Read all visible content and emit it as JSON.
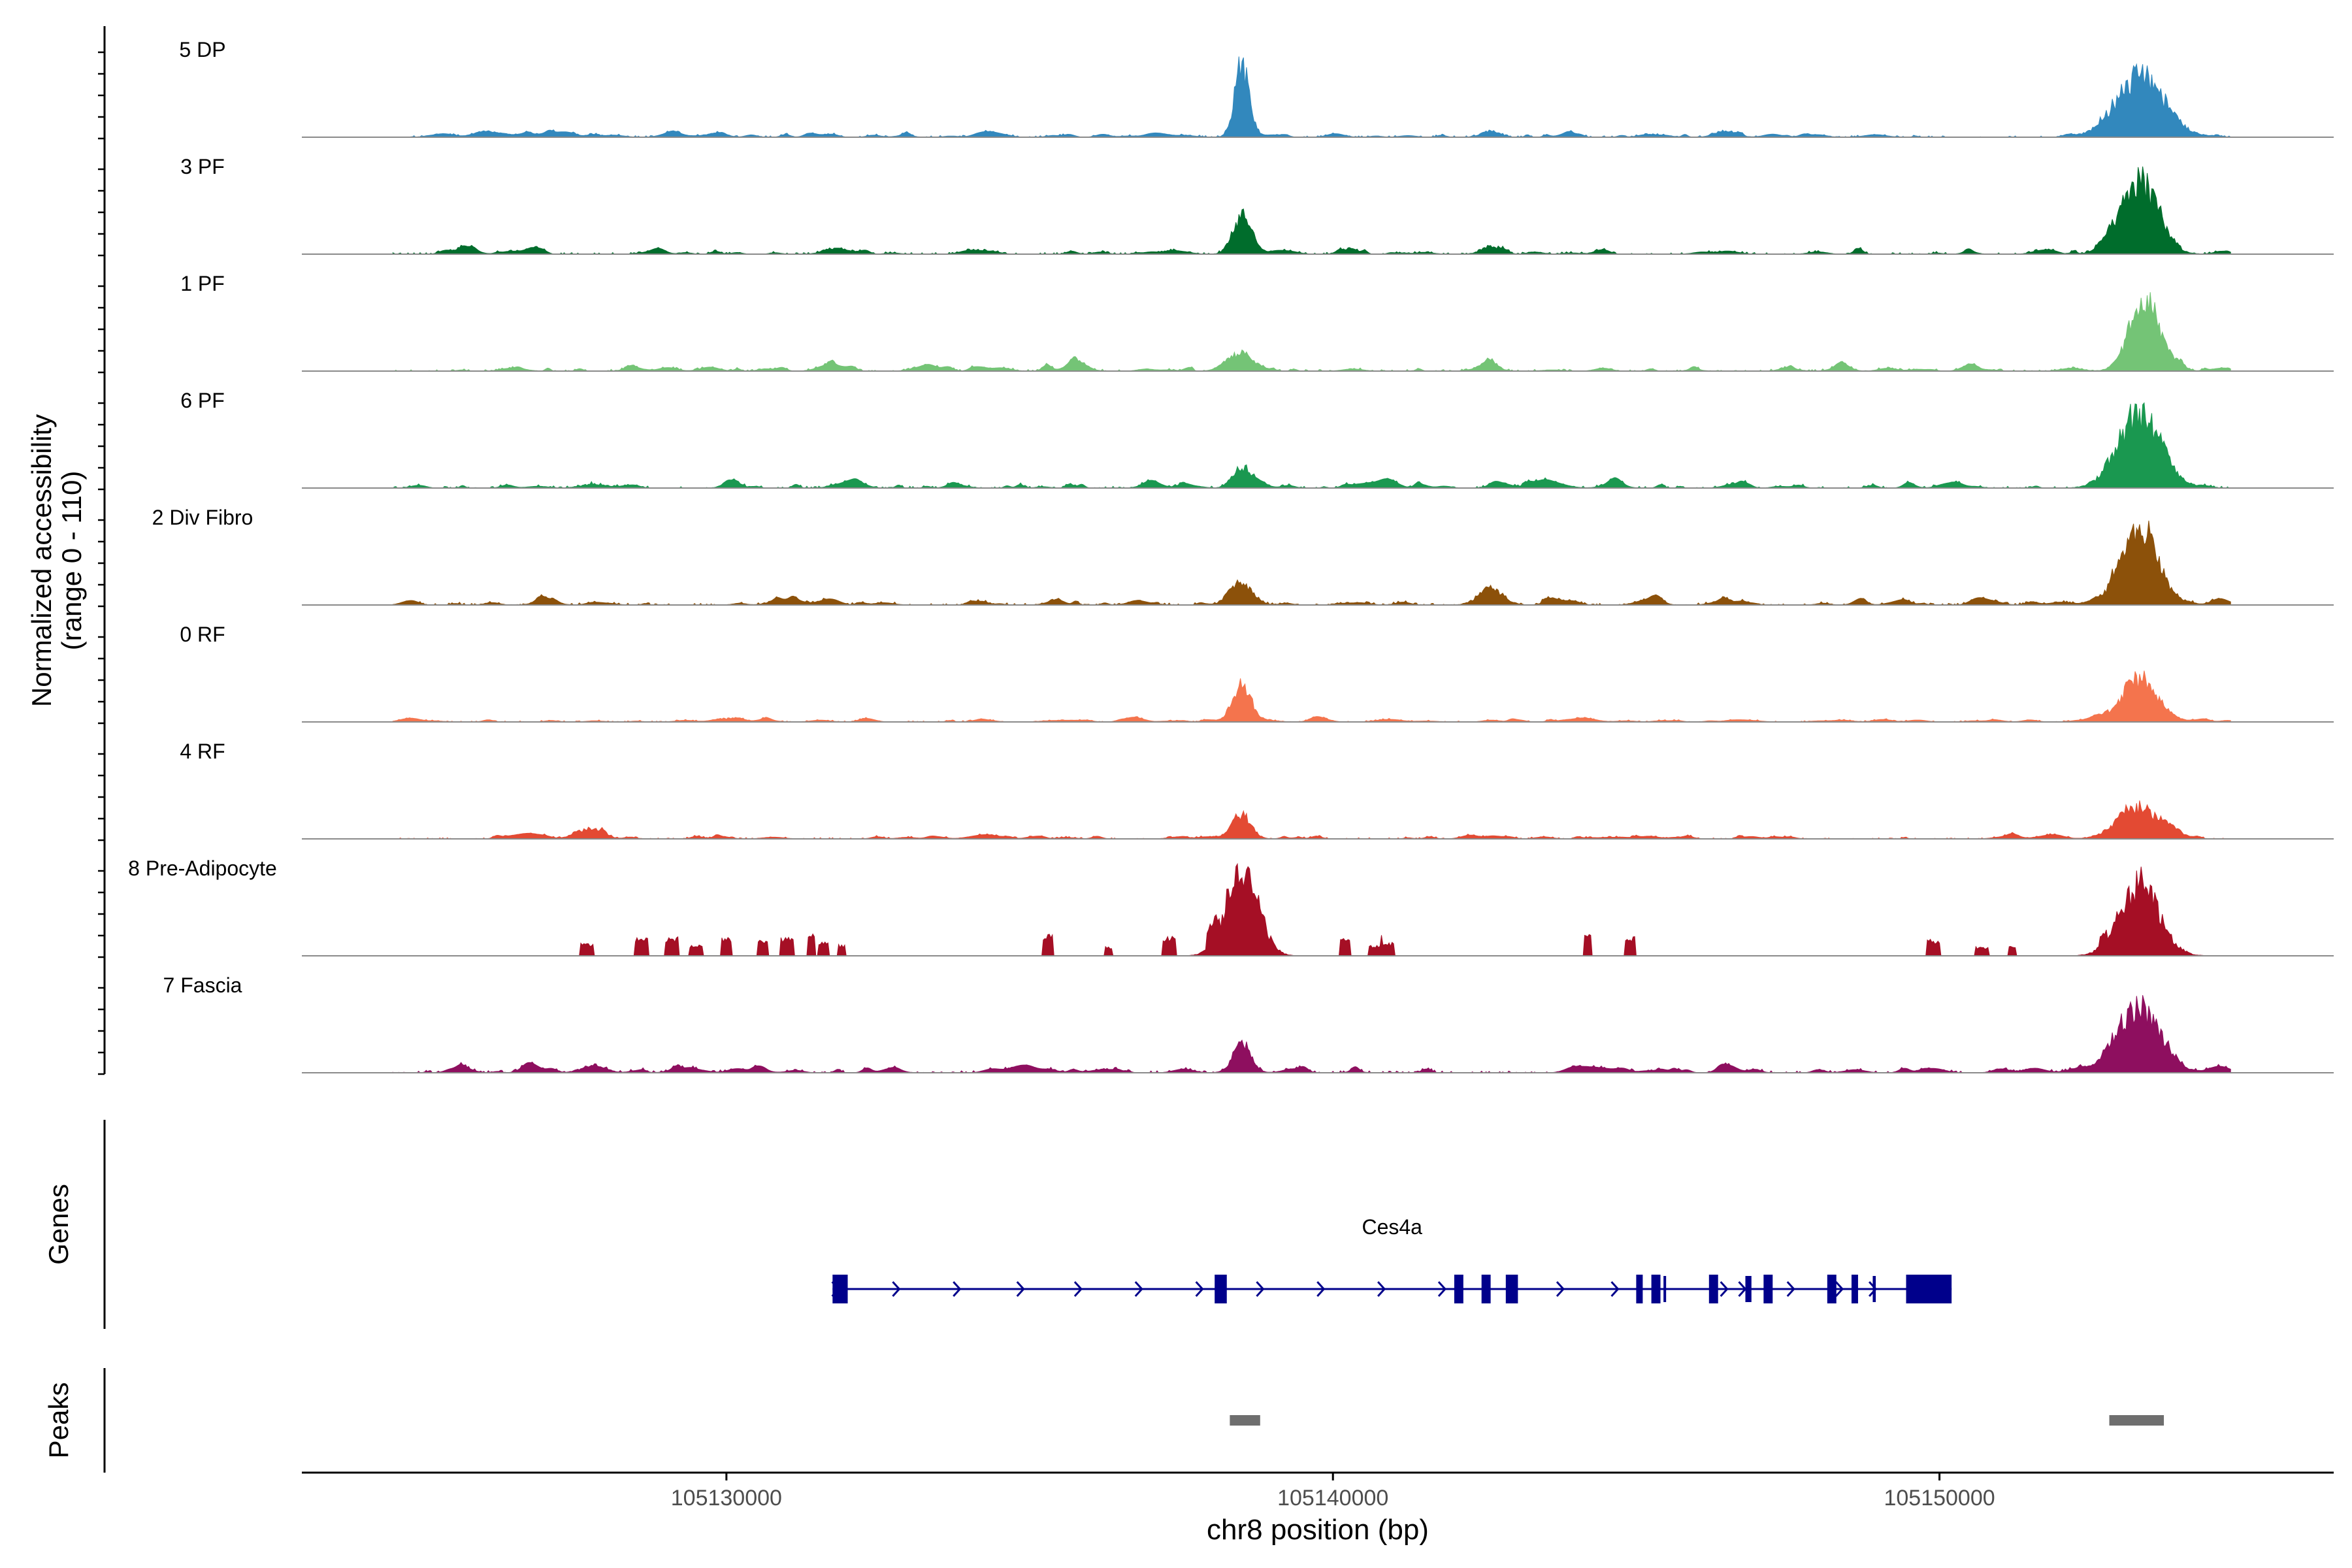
{
  "chart_data": {
    "type": "area",
    "title": "",
    "ylabel_line1": "Normalized accessibility",
    "ylabel_line2": "(range 0 - 110)",
    "y_range": [
      0,
      110
    ],
    "xlabel": "chr8 position (bp)",
    "xlim": [
      105123000,
      105156500
    ],
    "xticks": [
      105130000,
      105140000,
      105150000
    ],
    "xtick_labels": [
      "105130000",
      "105140000",
      "105150000"
    ],
    "genes_label": "Genes",
    "peaks_label": "Peaks",
    "tracks": [
      {
        "name": "5 DP",
        "color": "#3288bd",
        "seed": 11,
        "noise": 3.5,
        "peaks": [
          [
            105138500,
            110,
            120
          ],
          [
            105142600,
            8,
            150
          ],
          [
            105153300,
            90,
            400
          ],
          [
            105126100,
            4,
            200
          ],
          [
            105129800,
            3,
            150
          ],
          [
            105146500,
            3,
            200
          ]
        ]
      },
      {
        "name": "3 PF",
        "color": "#006d2c",
        "seed": 23,
        "noise": 4,
        "peaks": [
          [
            105138500,
            55,
            150
          ],
          [
            105142600,
            12,
            150
          ],
          [
            105153300,
            105,
            300
          ],
          [
            105131800,
            6,
            150
          ]
        ]
      },
      {
        "name": "1 PF",
        "color": "#74c476",
        "seed": 37,
        "noise": 4,
        "peaks": [
          [
            105138500,
            25,
            180
          ],
          [
            105142600,
            15,
            120
          ],
          [
            105153400,
            105,
            250
          ],
          [
            105135800,
            8,
            150
          ]
        ]
      },
      {
        "name": "6 PF",
        "color": "#1a9850",
        "seed": 41,
        "noise": 4.5,
        "peaks": [
          [
            105138500,
            30,
            150
          ],
          [
            105153300,
            110,
            350
          ],
          [
            105127800,
            6,
            200
          ],
          [
            105130100,
            8,
            150
          ]
        ]
      },
      {
        "name": "2 Div Fibro",
        "color": "#8c510a",
        "seed": 53,
        "noise": 4.5,
        "peaks": [
          [
            105138500,
            35,
            180
          ],
          [
            105142600,
            25,
            200
          ],
          [
            105153300,
            120,
            300
          ]
        ]
      },
      {
        "name": "0 RF",
        "color": "#f4744d",
        "seed": 61,
        "noise": 2.5,
        "peaks": [
          [
            105138500,
            55,
            150
          ],
          [
            105153300,
            65,
            300
          ],
          [
            105130000,
            5,
            150
          ]
        ]
      },
      {
        "name": "4 RF",
        "color": "#e34a33",
        "seed": 71,
        "noise": 3,
        "peaks": [
          [
            105138500,
            35,
            150
          ],
          [
            105153300,
            45,
            350
          ],
          [
            105127800,
            14,
            180
          ]
        ]
      },
      {
        "name": "8 Pre-Adipocyte",
        "color": "#a50f25",
        "seed": 83,
        "noise": 0,
        "peaks": [
          [
            105138500,
            140,
            260
          ],
          [
            105153300,
            110,
            320
          ]
        ]
      },
      {
        "name": "7 Fascia",
        "color": "#8e0f5f",
        "seed": 97,
        "noise": 5,
        "peaks": [
          [
            105138500,
            45,
            150
          ],
          [
            105153300,
            100,
            350
          ],
          [
            105127800,
            10,
            200
          ]
        ]
      }
    ],
    "gene": {
      "name": "Ces4a",
      "start": 105131750,
      "end": 105150200,
      "strand": "+",
      "color": "#00008b",
      "exons": [
        [
          105131750,
          105132000
        ],
        [
          105138050,
          105138250
        ],
        [
          105142000,
          105142150
        ],
        [
          105142450,
          105142600
        ],
        [
          105142850,
          105143050
        ],
        [
          105145000,
          105145100
        ],
        [
          105145250,
          105145400
        ],
        [
          105146200,
          105146350
        ],
        [
          105147100,
          105147250
        ],
        [
          105148150,
          105148300
        ],
        [
          105148550,
          105148650
        ],
        [
          105149450,
          105150200
        ]
      ],
      "small_exons": [
        [
          105145450,
          105145480
        ],
        [
          105146800,
          105146900
        ],
        [
          105148900,
          105148950
        ]
      ],
      "arrows": [
        105131850,
        105132850,
        105133850,
        105134900,
        105135850,
        105136850,
        105137850,
        105138850,
        105139850,
        105140850,
        105141850,
        105143800,
        105144700,
        105146500,
        105146800,
        105147600,
        105148400,
        105148950
      ]
    },
    "peaks_regions": {
      "color": "#6e6e6e",
      "regions": [
        [
          105138300,
          105138800
        ],
        [
          105152800,
          105153700
        ]
      ]
    }
  }
}
